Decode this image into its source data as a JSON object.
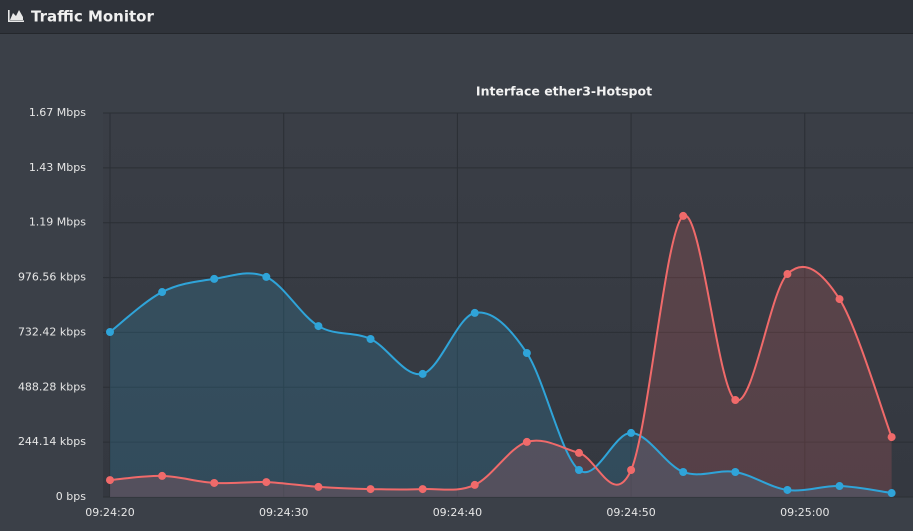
{
  "header": {
    "title": "Traffic Monitor"
  },
  "chart_data": {
    "type": "line",
    "title": "Interface ether3-Hotspot",
    "x": [
      "09:24:20",
      "09:24:23",
      "09:24:26",
      "09:24:29",
      "09:24:32",
      "09:24:35",
      "09:24:38",
      "09:24:41",
      "09:24:44",
      "09:24:47",
      "09:24:50",
      "09:24:53",
      "09:24:56",
      "09:24:59",
      "09:25:02",
      "09:25:05"
    ],
    "series": [
      {
        "color": "#2fa4d9",
        "values": [
          752000,
          934000,
          994000,
          1003000,
          779000,
          720000,
          561000,
          839000,
          656000,
          123000,
          292000,
          114000,
          114000,
          32000,
          50000,
          18000
        ]
      },
      {
        "color": "#f06a6a",
        "values": [
          77000,
          96000,
          64000,
          68000,
          46000,
          36000,
          36000,
          55000,
          251000,
          201000,
          123000,
          1281000,
          442000,
          1016000,
          902000,
          273000
        ]
      }
    ],
    "xlim": [
      "09:24:20",
      "09:25:06"
    ],
    "xticks": [
      "09:24:20",
      "09:24:30",
      "09:24:40",
      "09:24:50",
      "09:25:00"
    ],
    "ylim": [
      0,
      1750000
    ],
    "yticks": [
      {
        "value": 0,
        "label": "0 bps"
      },
      {
        "value": 250000,
        "label": "244.14 kbps"
      },
      {
        "value": 500000,
        "label": "488.28 kbps"
      },
      {
        "value": 750000,
        "label": "732.42 kbps"
      },
      {
        "value": 1000000,
        "label": "976.56 kbps"
      },
      {
        "value": 1250000,
        "label": "1.19 Mbps"
      },
      {
        "value": 1500000,
        "label": "1.43 Mbps"
      },
      {
        "value": 1750000,
        "label": "1.67 Mbps"
      }
    ],
    "grid": true
  }
}
